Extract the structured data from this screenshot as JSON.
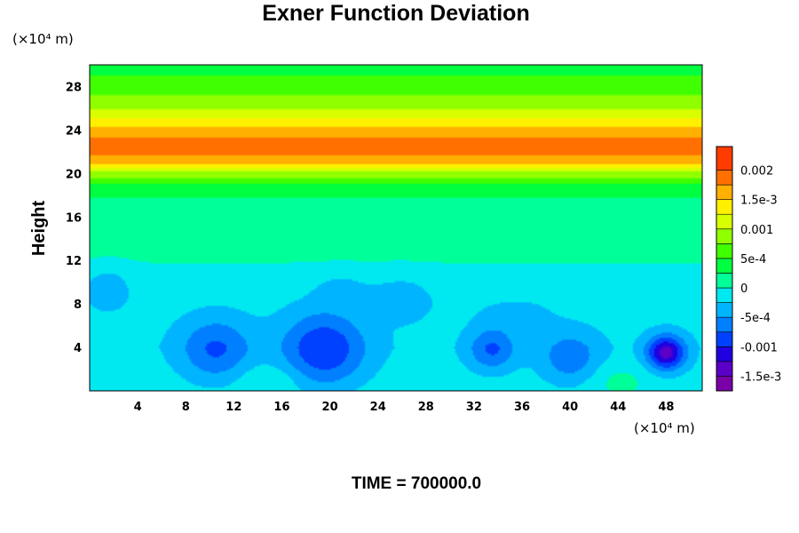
{
  "chart_data": {
    "type": "heatmap",
    "title": "Exner Function Deviation",
    "ylabel": "Height",
    "xlabel": "",
    "x_unit": "(×10⁴ m)",
    "y_unit": "(×10⁴ m)",
    "xlim": [
      0,
      51
    ],
    "ylim": [
      0,
      30
    ],
    "x_ticks": [
      4,
      8,
      12,
      16,
      20,
      24,
      28,
      32,
      36,
      40,
      44,
      48
    ],
    "y_ticks": [
      4,
      8,
      12,
      16,
      20,
      24,
      28
    ],
    "footer": "TIME = 700000.0",
    "colorbar": {
      "min": -0.00175,
      "max": 0.0024,
      "levels": [
        -0.00175,
        -0.0015,
        -0.00125,
        -0.001,
        -0.00075,
        -0.0005,
        -0.00025,
        0,
        0.00025,
        0.0005,
        0.00075,
        0.001,
        0.00125,
        0.0015,
        0.00175,
        0.002,
        0.0024
      ],
      "colors": [
        "#7a00a8",
        "#5a00c8",
        "#2000e0",
        "#0040ff",
        "#0080ff",
        "#00b4ff",
        "#00e8f0",
        "#00ff98",
        "#00ff40",
        "#40ff00",
        "#90ff00",
        "#d8ff00",
        "#fff000",
        "#ffb000",
        "#ff7000",
        "#ff3c00",
        "#ff8080"
      ],
      "tick_values": [
        0.002,
        0.0015,
        0.001,
        0.0005,
        0,
        -0.0005,
        -0.001,
        -0.0015
      ],
      "tick_labels": [
        "0.002",
        "1.5e-3",
        "0.001",
        "5e-4",
        "0",
        "-5e-4",
        "-0.001",
        "-1.5e-3"
      ]
    },
    "field": {
      "layer_profile": [
        {
          "z": 0,
          "v": -0.0001
        },
        {
          "z": 4,
          "v": -0.0002
        },
        {
          "z": 8,
          "v": -0.00015
        },
        {
          "z": 11,
          "v": -5e-05
        },
        {
          "z": 13,
          "v": 8e-05
        },
        {
          "z": 16,
          "v": 0.00012
        },
        {
          "z": 18.5,
          "v": 0.0003
        },
        {
          "z": 20,
          "v": 0.0009
        },
        {
          "z": 21,
          "v": 0.0016
        },
        {
          "z": 22.5,
          "v": 0.00195
        },
        {
          "z": 24,
          "v": 0.0016
        },
        {
          "z": 26,
          "v": 0.001
        },
        {
          "z": 28,
          "v": 0.0006
        },
        {
          "z": 30,
          "v": 0.0004
        }
      ],
      "anomalies": [
        {
          "x": 10.5,
          "z": 3.8,
          "amp": -0.0006,
          "rx": 3.0,
          "rz": 3.0
        },
        {
          "x": 19.5,
          "z": 3.8,
          "amp": -0.0008,
          "rx": 3.5,
          "rz": 3.5
        },
        {
          "x": 33.5,
          "z": 3.8,
          "amp": -0.0006,
          "rx": 2.0,
          "rz": 2.0
        },
        {
          "x": 40.0,
          "z": 3.0,
          "amp": -0.0005,
          "rx": 2.5,
          "rz": 2.5
        },
        {
          "x": 48.0,
          "z": 3.5,
          "amp": -0.0012,
          "rx": 1.6,
          "rz": 1.6
        },
        {
          "x": 1.5,
          "z": 9.5,
          "amp": -0.0003,
          "rx": 2.0,
          "rz": 2.0
        },
        {
          "x": 26.0,
          "z": 8.5,
          "amp": -0.0003,
          "rx": 2.5,
          "rz": 2.0
        },
        {
          "x": 21.0,
          "z": 9.5,
          "amp": -0.0002,
          "rx": 2.5,
          "rz": 1.5
        },
        {
          "x": 35.5,
          "z": 7.0,
          "amp": -0.0002,
          "rx": 3.0,
          "rz": 1.5
        },
        {
          "x": 15.0,
          "z": 1.0,
          "amp": 0.0002,
          "rx": 2.5,
          "rz": 1.5
        },
        {
          "x": 44.0,
          "z": 1.0,
          "amp": 0.0002,
          "rx": 2.5,
          "rz": 1.5
        }
      ]
    }
  }
}
